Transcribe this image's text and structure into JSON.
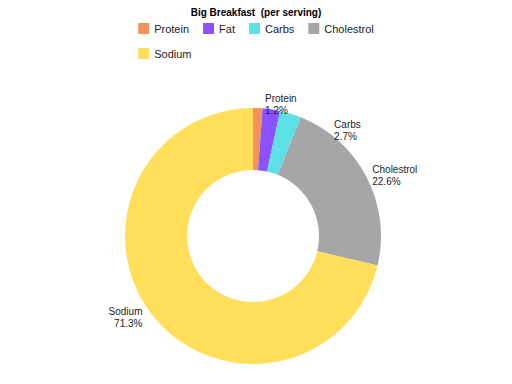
{
  "chart_data": {
    "type": "pie",
    "title": "Big Breakfast  (per serving)",
    "categories": [
      "Protein",
      "Fat",
      "Carbs",
      "Cholestrol",
      "Sodium"
    ],
    "values": [
      1.2,
      2.2,
      2.7,
      22.6,
      71.3
    ],
    "value_labels": [
      "1.2%",
      null,
      "2.7%",
      "22.6%",
      "71.3%"
    ],
    "colors": [
      "#f4925a",
      "#8c52ff",
      "#5ce1e6",
      "#a6a6a6",
      "#ffde59"
    ],
    "data_labels": true,
    "legend": "top"
  }
}
